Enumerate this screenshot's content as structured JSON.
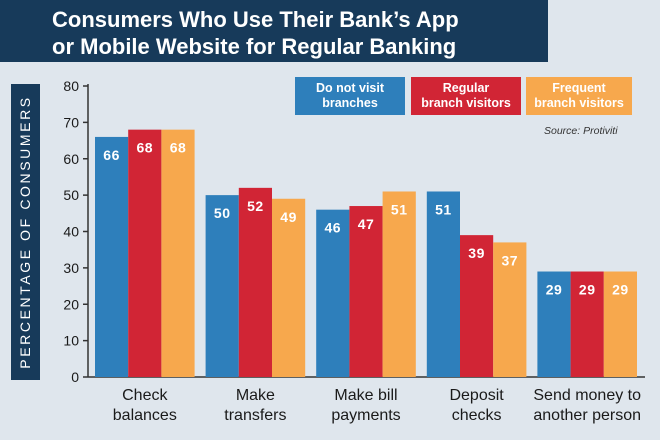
{
  "title": {
    "line1": "Consumers Who Use Their Bank’s App",
    "line2": "or Mobile Website for Regular Banking"
  },
  "source": "Source: Protiviti",
  "colors": {
    "title_bg": "#173a5a",
    "background": "#dfe6ed"
  },
  "chart_data": {
    "type": "bar",
    "title": "Consumers Who Use Their Bank’s App or Mobile Website for Regular Banking",
    "ylabel": "PERCENTAGE OF CONSUMERS",
    "xlabel": "",
    "ylim": [
      0,
      80
    ],
    "yticks": [
      0,
      10,
      20,
      30,
      40,
      50,
      60,
      70,
      80
    ],
    "grid": false,
    "legend_position": "top-right",
    "categories": [
      [
        "Check",
        "balances"
      ],
      [
        "Make",
        "transfers"
      ],
      [
        "Make bill",
        "payments"
      ],
      [
        "Deposit",
        "checks"
      ],
      [
        "Send money to",
        "another person"
      ]
    ],
    "series": [
      {
        "name": "Do not visit branches",
        "legend": [
          "Do not visit",
          "branches"
        ],
        "color": "#2e7fbb",
        "values": [
          66,
          50,
          46,
          51,
          29
        ]
      },
      {
        "name": "Regular branch visitors",
        "legend": [
          "Regular",
          "branch visitors"
        ],
        "color": "#d12535",
        "values": [
          68,
          52,
          47,
          39,
          29
        ]
      },
      {
        "name": "Frequent branch visitors",
        "legend": [
          "Frequent",
          "branch visitors"
        ],
        "color": "#f7a84d",
        "values": [
          68,
          49,
          51,
          37,
          29
        ]
      }
    ]
  }
}
